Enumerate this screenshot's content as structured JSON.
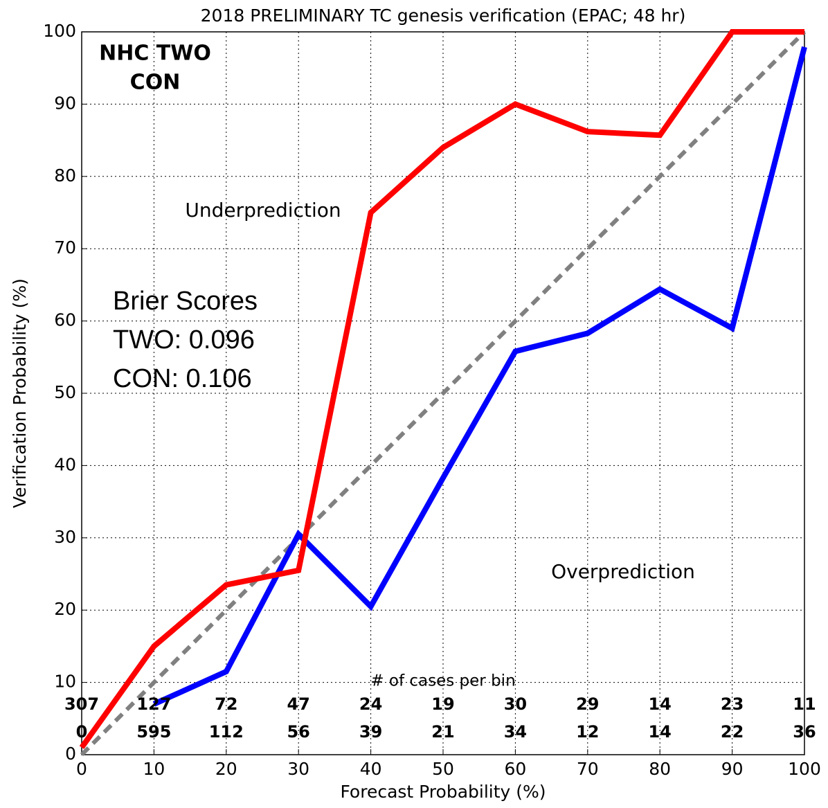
{
  "chart_data": {
    "type": "line",
    "title": "2018 PRELIMINARY TC genesis verification (EPAC; 48 hr)",
    "x_label": "Forecast Probability (%)",
    "y_label": "Verification Probability (%)",
    "x": [
      0,
      10,
      20,
      30,
      40,
      50,
      60,
      70,
      80,
      90,
      100
    ],
    "series": [
      {
        "name": "NHC TWO",
        "color": "#ff0000",
        "values": [
          1,
          15,
          23.5,
          25.5,
          75,
          84,
          90,
          86.2,
          85.7,
          100,
          100
        ],
        "cases": [
          307,
          127,
          72,
          47,
          24,
          19,
          30,
          29,
          14,
          23,
          11
        ]
      },
      {
        "name": "CON",
        "color": "#0000ff",
        "values": [
          null,
          7,
          11.5,
          30.5,
          20.5,
          38.3,
          55.8,
          58.3,
          64.4,
          59,
          97.9
        ],
        "cases": [
          0,
          595,
          112,
          56,
          39,
          21,
          34,
          12,
          14,
          22,
          36
        ]
      }
    ],
    "cases_label": "# of cases per bin",
    "annotations": [
      "Underprediction",
      "Overprediction"
    ],
    "brier": [
      "Brier Scores",
      "TWO: 0.096",
      "CON: 0.106"
    ],
    "xlim": [
      0,
      100
    ],
    "ylim": [
      0,
      100
    ],
    "xticks": [
      0,
      10,
      20,
      30,
      40,
      50,
      60,
      70,
      80,
      90,
      100
    ],
    "yticks": [
      0,
      10,
      20,
      30,
      40,
      50,
      60,
      70,
      80,
      90,
      100
    ],
    "grid": true,
    "diagonal": true,
    "legend": "upper left"
  }
}
